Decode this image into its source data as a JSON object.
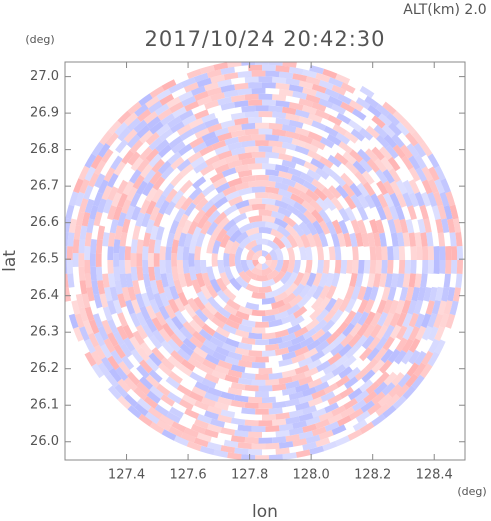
{
  "chart_data": {
    "type": "heatmap",
    "title": "2017/10/24 20:42:30",
    "annotation": "ALT(km) 2.0",
    "xlabel": "lon",
    "ylabel": "lat",
    "x_unit": "(deg)",
    "y_unit": "(deg)",
    "xlim": [
      127.2,
      128.5
    ],
    "ylim": [
      25.95,
      27.04
    ],
    "xticks": [
      127.4,
      127.6,
      127.8,
      {
        "value": 128,
        "label": "128.0"
      },
      128.2,
      128.4
    ],
    "yticks": [
      {
        "value": 26,
        "label": "26.0"
      },
      26.1,
      26.2,
      26.3,
      26.4,
      26.5,
      26.6,
      26.7,
      26.8,
      26.9,
      {
        "value": 27,
        "label": "27.0"
      }
    ]
  }
}
